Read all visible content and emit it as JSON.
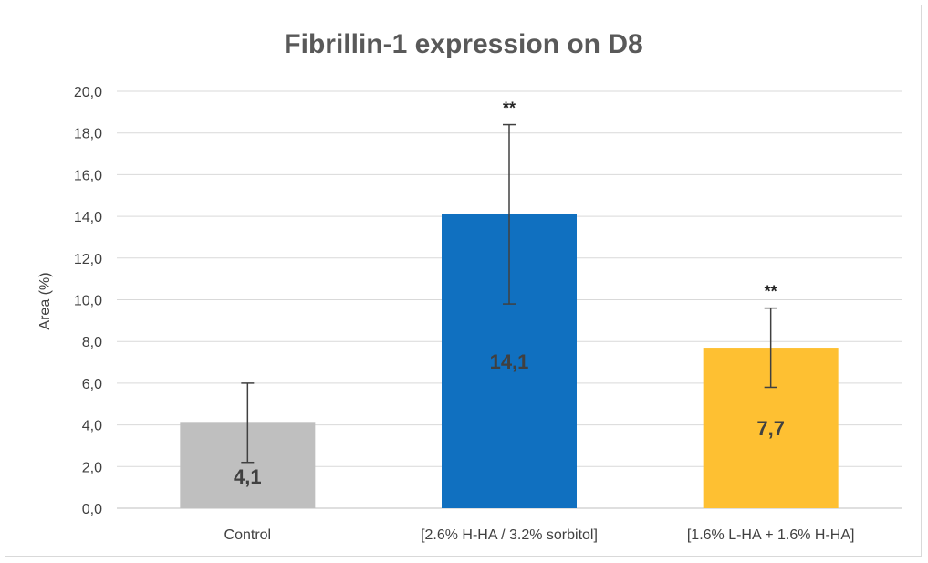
{
  "chart_data": {
    "type": "bar",
    "title": "Fibrillin-1 expression on D8",
    "xlabel": "",
    "ylabel": "Area (%)",
    "ylim": [
      0,
      20
    ],
    "yticks": [
      "0,0",
      "2,0",
      "4,0",
      "6,0",
      "8,0",
      "10,0",
      "12,0",
      "14,0",
      "16,0",
      "18,0",
      "20,0"
    ],
    "ytick_values": [
      0,
      2,
      4,
      6,
      8,
      10,
      12,
      14,
      16,
      18,
      20
    ],
    "grid": true,
    "categories": [
      "Control",
      "[2.6% H-HA / 3.2% sorbitol]",
      "[1.6% L-HA + 1.6% H-HA]"
    ],
    "values": [
      4.1,
      14.1,
      7.7
    ],
    "data_labels": [
      "4,1",
      "14,1",
      "7,7"
    ],
    "error": [
      1.9,
      4.3,
      1.9
    ],
    "significance": [
      "",
      "**",
      "**"
    ],
    "colors": [
      "#bfbfbf",
      "#1070c0",
      "#fec032"
    ]
  }
}
